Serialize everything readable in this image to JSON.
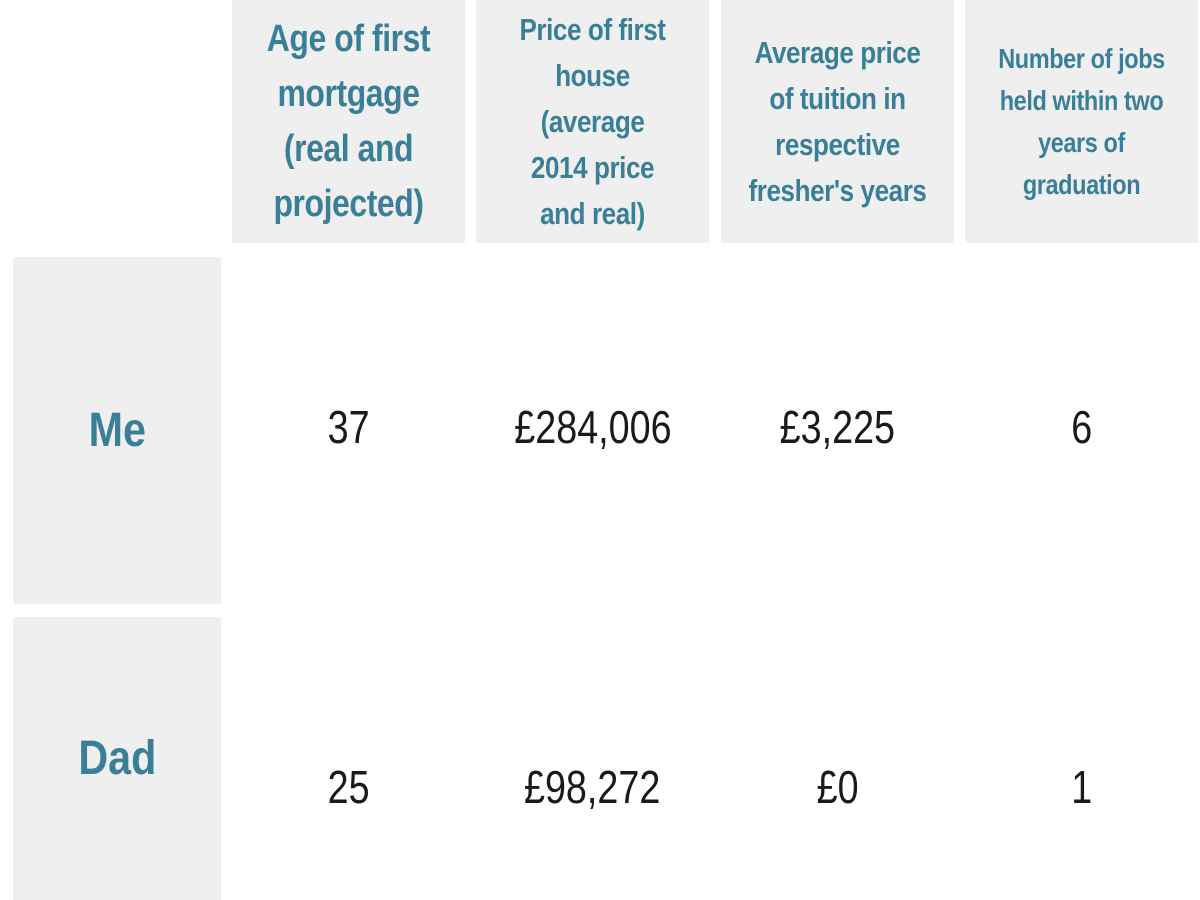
{
  "chart_data": {
    "type": "table",
    "columns": [
      "Age of first mortgage (real and projected)",
      "Price of first house (average 2014 price and real)",
      "Average price of tuition in respective fresher's years",
      "Number of jobs held within two years of graduation"
    ],
    "header_lines": [
      [
        "Age of first",
        "mortgage",
        "(real and",
        "projected)"
      ],
      [
        "Price of first",
        "house (average",
        "2014 price",
        "and real)"
      ],
      [
        "Average price",
        "of tuition in",
        "respective",
        "fresher's years"
      ],
      [
        "Number of jobs",
        "held within two",
        "years of",
        "graduation"
      ]
    ],
    "rows": [
      {
        "label": "Me",
        "values": [
          "37",
          "£284,006",
          "£3,225",
          "6"
        ]
      },
      {
        "label": "Dad",
        "values": [
          "25",
          "£98,272",
          "£0",
          "1"
        ]
      }
    ]
  },
  "colors": {
    "accent": "#3a7f98",
    "cell_background": "#efefef",
    "value_text": "#1a1a1a"
  }
}
